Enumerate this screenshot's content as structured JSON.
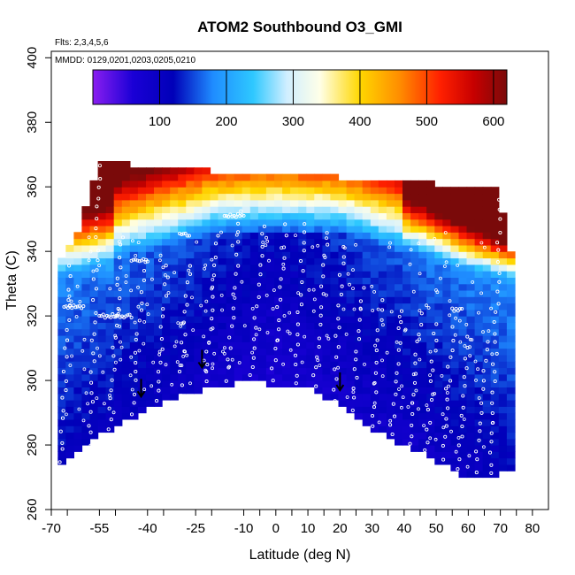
{
  "chart_data": {
    "type": "heatmap",
    "title": "ATOM2 Southbound O3_GMI",
    "flights_label": "Flts: 2,3,4,5,6",
    "dates_label": "MMDD: 0129,0201,0203,0205,0210",
    "xlabel": "Latitude (deg N)",
    "ylabel": "Theta (C)",
    "xlim": [
      -70,
      85
    ],
    "ylim": [
      260,
      402
    ],
    "x_ticks": [
      -70,
      -65,
      -55,
      -50,
      -40,
      -35,
      -25,
      -20,
      -10,
      -5,
      0,
      5,
      10,
      15,
      20,
      25,
      30,
      35,
      40,
      45,
      50,
      55,
      60,
      65,
      70,
      75,
      80
    ],
    "x_tick_labels": [
      {
        "value": -70,
        "label": "-70"
      },
      {
        "value": -55,
        "label": "-55"
      },
      {
        "value": -40,
        "label": "-40"
      },
      {
        "value": -25,
        "label": "-25"
      },
      {
        "value": -10,
        "label": "-10"
      },
      {
        "value": 0,
        "label": "0"
      },
      {
        "value": 10,
        "label": "10"
      },
      {
        "value": 20,
        "label": "20"
      },
      {
        "value": 30,
        "label": "30"
      },
      {
        "value": 40,
        "label": "40"
      },
      {
        "value": 50,
        "label": "50"
      },
      {
        "value": 60,
        "label": "60"
      },
      {
        "value": 70,
        "label": "70"
      },
      {
        "value": 80,
        "label": "80"
      }
    ],
    "y_ticks": [
      260,
      280,
      300,
      320,
      340,
      360,
      380,
      400
    ],
    "y_tick_labels": [
      "260",
      "280",
      "300",
      "320",
      "340",
      "360",
      "380",
      "400"
    ],
    "colorbar": {
      "range": [
        0,
        620
      ],
      "ticks": [
        100,
        200,
        300,
        400,
        500,
        600
      ],
      "tick_labels": [
        "100",
        "200",
        "300",
        "400",
        "500",
        "600"
      ],
      "stops": [
        {
          "value": 0,
          "color": "#8a1ef0"
        },
        {
          "value": 60,
          "color": "#1a00d6"
        },
        {
          "value": 120,
          "color": "#0000b8"
        },
        {
          "value": 180,
          "color": "#1f8cff"
        },
        {
          "value": 240,
          "color": "#2ec8ff"
        },
        {
          "value": 290,
          "color": "#cfeeff"
        },
        {
          "value": 340,
          "color": "#ffffe8"
        },
        {
          "value": 400,
          "color": "#ffd700"
        },
        {
          "value": 460,
          "color": "#ff8c00"
        },
        {
          "value": 520,
          "color": "#ff2000"
        },
        {
          "value": 570,
          "color": "#c80000"
        },
        {
          "value": 620,
          "color": "#7a0a0a"
        }
      ]
    },
    "field_boundary": {
      "bottom": [
        {
          "lat": -67,
          "theta": 274
        },
        {
          "lat": -60,
          "theta": 280
        },
        {
          "lat": -50,
          "theta": 287
        },
        {
          "lat": -40,
          "theta": 292
        },
        {
          "lat": -30,
          "theta": 296
        },
        {
          "lat": -20,
          "theta": 299
        },
        {
          "lat": -8,
          "theta": 301
        },
        {
          "lat": 0,
          "theta": 299
        },
        {
          "lat": 10,
          "theta": 299
        },
        {
          "lat": 20,
          "theta": 293
        },
        {
          "lat": 30,
          "theta": 286
        },
        {
          "lat": 40,
          "theta": 281
        },
        {
          "lat": 50,
          "theta": 276
        },
        {
          "lat": 60,
          "theta": 271
        },
        {
          "lat": 68,
          "theta": 270
        },
        {
          "lat": 72,
          "theta": 273
        }
      ],
      "top": [
        {
          "lat": 72,
          "theta": 340
        },
        {
          "lat": 70,
          "theta": 358
        },
        {
          "lat": 50,
          "theta": 360
        },
        {
          "lat": 20,
          "theta": 362
        },
        {
          "lat": 0,
          "theta": 363
        },
        {
          "lat": -20,
          "theta": 364
        },
        {
          "lat": -40,
          "theta": 365
        },
        {
          "lat": -54,
          "theta": 368
        },
        {
          "lat": -57,
          "theta": 360
        },
        {
          "lat": -62,
          "theta": 345
        },
        {
          "lat": -67,
          "theta": 336
        }
      ]
    },
    "grid": {
      "lat_step": 2.5,
      "theta_step": 2,
      "model": "ozone increases with theta and latitude magnitude; tropical minimum; stratospheric maximum above 350 K in the northern extratropics"
    },
    "profile_markers": [
      {
        "lat": -42,
        "theta": 295
      },
      {
        "lat": -23,
        "theta": 304
      },
      {
        "lat": 20,
        "theta": 297
      }
    ],
    "sample_points": {
      "description": "aircraft sampling locations (white circles)",
      "ascents": [
        {
          "lat0": -67,
          "theta0": 275,
          "lat1": -64,
          "theta1": 335
        },
        {
          "lat0": -58,
          "theta0": 280,
          "lat1": -55,
          "theta1": 366
        },
        {
          "lat0": -52,
          "theta0": 285,
          "lat1": -48,
          "theta1": 345
        },
        {
          "lat0": -45,
          "theta0": 290,
          "lat1": -41,
          "theta1": 337
        },
        {
          "lat0": -37,
          "theta0": 293,
          "lat1": -34,
          "theta1": 336
        },
        {
          "lat0": -30,
          "theta0": 296,
          "lat1": -27,
          "theta1": 336
        },
        {
          "lat0": -22,
          "theta0": 299,
          "lat1": -18,
          "theta1": 345
        },
        {
          "lat0": -15,
          "theta0": 300,
          "lat1": -11,
          "theta1": 352
        },
        {
          "lat0": -8,
          "theta0": 301,
          "lat1": -4,
          "theta1": 348
        },
        {
          "lat0": -1,
          "theta0": 300,
          "lat1": 3,
          "theta1": 348
        },
        {
          "lat0": 6,
          "theta0": 299,
          "lat1": 9,
          "theta1": 349
        },
        {
          "lat0": 12,
          "theta0": 298,
          "lat1": 16,
          "theta1": 345
        },
        {
          "lat0": 18,
          "theta0": 294,
          "lat1": 21,
          "theta1": 342
        },
        {
          "lat0": 24,
          "theta0": 291,
          "lat1": 27,
          "theta1": 328
        },
        {
          "lat0": 30,
          "theta0": 286,
          "lat1": 33,
          "theta1": 325
        },
        {
          "lat0": 36,
          "theta0": 283,
          "lat1": 39,
          "theta1": 322
        },
        {
          "lat0": 42,
          "theta0": 280,
          "lat1": 45,
          "theta1": 321
        },
        {
          "lat0": 47,
          "theta0": 278,
          "lat1": 50,
          "theta1": 318
        },
        {
          "lat0": 52,
          "theta0": 276,
          "lat1": 55,
          "theta1": 316
        },
        {
          "lat0": 57,
          "theta0": 273,
          "lat1": 60,
          "theta1": 313
        },
        {
          "lat0": 62,
          "theta0": 272,
          "lat1": 66,
          "theta1": 312
        },
        {
          "lat0": 67,
          "theta0": 271,
          "lat1": 70,
          "theta1": 356
        }
      ],
      "level_legs": [
        {
          "lat0": -66,
          "lat1": -60,
          "theta": 323
        },
        {
          "lat0": -55,
          "lat1": -45,
          "theta": 320
        },
        {
          "lat0": -45,
          "lat1": -40,
          "theta": 337
        },
        {
          "lat0": -30,
          "lat1": -27,
          "theta": 345
        },
        {
          "lat0": -16,
          "lat1": -10,
          "theta": 351
        },
        {
          "lat0": 55,
          "lat1": 58,
          "theta": 322
        }
      ]
    }
  }
}
